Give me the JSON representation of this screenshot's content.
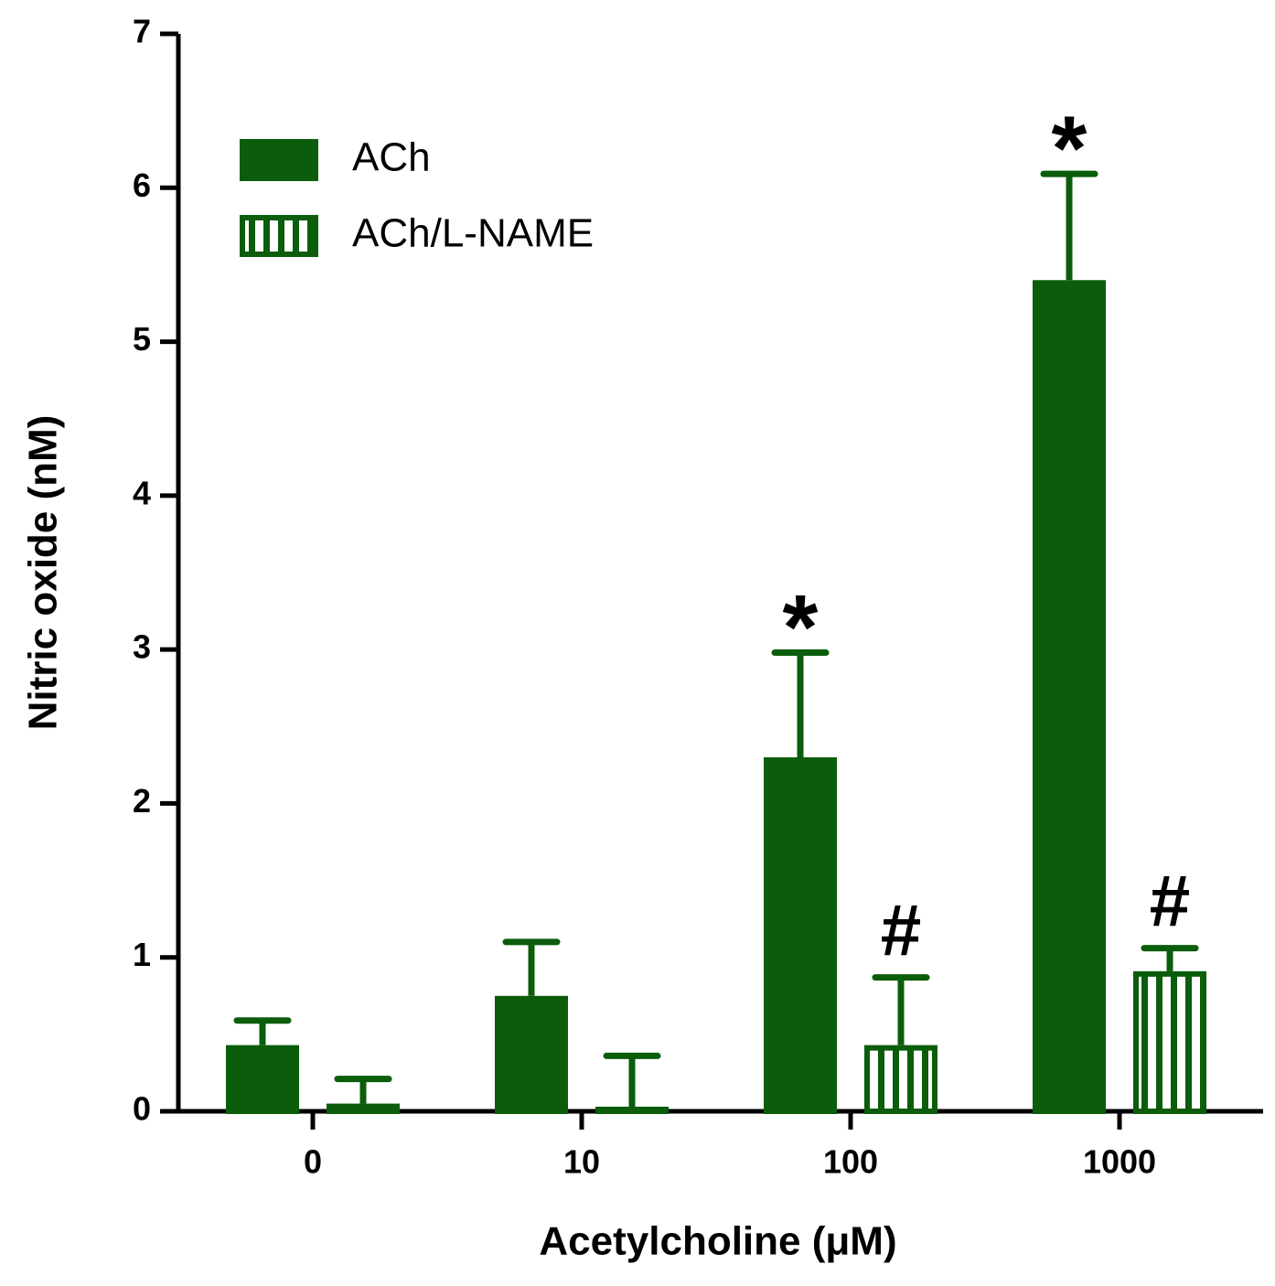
{
  "chart_data": {
    "type": "bar",
    "xlabel": "Acetylcholine (μM)",
    "ylabel": "Nitric oxide (nM)",
    "categories": [
      "0",
      "10",
      "100",
      "1000"
    ],
    "series": [
      {
        "name": "ACh",
        "color": "#0b5d0b",
        "fill": "solid",
        "values": [
          0.43,
          0.75,
          2.3,
          5.4
        ],
        "errors": [
          0.16,
          0.35,
          0.68,
          0.69
        ],
        "annotations": [
          null,
          null,
          "*",
          "*"
        ]
      },
      {
        "name": "ACh/L-NAME",
        "color": "#0b5d0b",
        "fill": "hatched",
        "values": [
          0.05,
          0.03,
          0.43,
          0.91
        ],
        "errors": [
          0.16,
          0.33,
          0.44,
          0.15
        ],
        "annotations": [
          null,
          null,
          "#",
          "#"
        ]
      }
    ],
    "ylim": [
      0,
      7
    ],
    "yticks": [
      0,
      1,
      2,
      3,
      4,
      5,
      6,
      7
    ],
    "legend": "upper-left"
  }
}
